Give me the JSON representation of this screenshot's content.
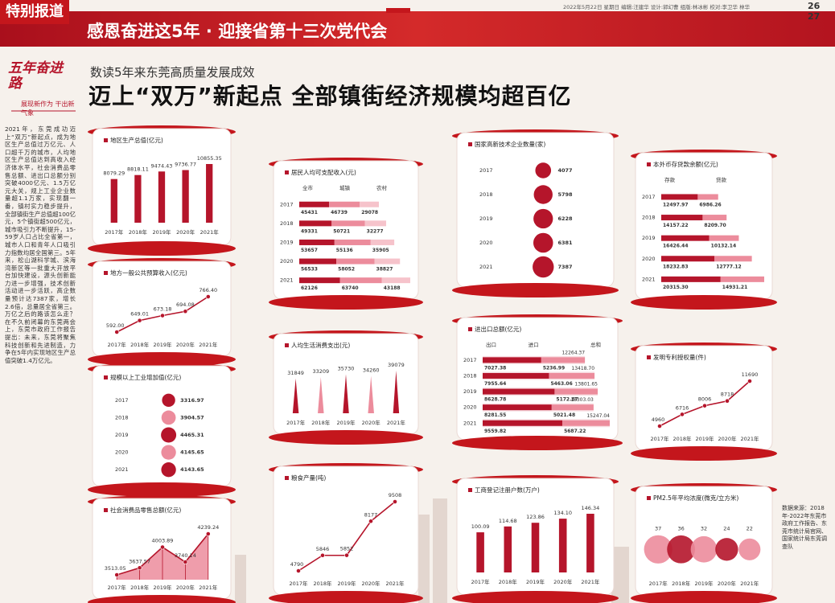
{
  "header": {
    "tag": "特别报道",
    "band_title": "感恩奋进这5年 · 迎接省第十三次党代会",
    "meta": "2022年5月22日 星期日 编辑:汪建华 设计:郭幻曹 组版:林冰彬 校对:李卫华 林华",
    "pages": "26 27"
  },
  "logo": {
    "title": "五年奋进路",
    "subtitle": "展现新作为 干出新气象"
  },
  "article": {
    "kicker": "数读5年来东莞高质量发展成效",
    "headline": "迈上“双万”新起点 全部镇街经济规模均超百亿",
    "body": "2021年，东莞成功迈上“双万”新起点，成为地区生产总值过万亿元、人口超千万的城市，人均地区生产总值达到高收入经济体水平，社会消费品零售总额、进出口总额分别突破4000亿元、1.5万亿元大关，规上工业企业数量超1.1万家，实现翻一番，镇村实力稳步提升，全部镇街生产总值超100亿元，5个镇街超500亿元，城市吸引力不断提升，15-59岁人口占比全省第一，城市人口和青年人口吸引力指数均居全国第三。5年来，松山湖科学城、滨海湾新区等一批重大开放平台加快建设，源头创新能力进一步增强，技术创新活动进一步活跃，高企数量预计达7387家，增长2.6倍，总量居全省第三。万亿之后的路该怎么走？在不久前闭幕的东莞两会上，东莞市政府工作报告提出：未来，东莞将聚焦科技创新和先进制造，力争在5年内实现地区生产总值突破1.4万亿元。",
    "source": "数据来源：2018年-2022年东莞市政府工作报告、东莞市统计局官网、国家统计局东莞调查队"
  },
  "chart_data": [
    {
      "type": "bar",
      "title": "地区生产总值(亿元)",
      "categories": [
        "2017年",
        "2018年",
        "2019年",
        "2020年",
        "2021年"
      ],
      "values": [
        8079.29,
        8818.11,
        9474.43,
        9736.77,
        10855.35
      ],
      "color": "#b5152b"
    },
    {
      "type": "line",
      "title": "地方一般公共预算收入(亿元)",
      "categories": [
        "2017年",
        "2018年",
        "2019年",
        "2020年",
        "2021年"
      ],
      "values": [
        592.0,
        649.01,
        673.18,
        694.08,
        766.4
      ],
      "value_labels": [
        "592.00",
        "649.01",
        "673.18",
        "694.08",
        "766.40"
      ],
      "color": "#b5152b"
    },
    {
      "type": "bubble",
      "title": "规模以上工业增加值(亿元)",
      "categories": [
        "2017",
        "2018",
        "2019",
        "2020",
        "2021"
      ],
      "values": [
        3316.97,
        3904.57,
        4465.31,
        4145.65,
        4143.65
      ],
      "colors": [
        "#b5152b",
        "#ec8c9c",
        "#b5152b",
        "#ec8c9c",
        "#b5152b"
      ]
    },
    {
      "type": "area",
      "title": "社会消费品零售总额(亿元)",
      "categories": [
        "2017年",
        "2018年",
        "2019年",
        "2020年",
        "2021年"
      ],
      "values": [
        3513.05,
        3637.57,
        4003.89,
        3740.14,
        4239.24
      ],
      "color": "#b5152b"
    },
    {
      "type": "hbar",
      "title": "居民人均可支配收入(元)",
      "categories": [
        "2017",
        "2018",
        "2019",
        "2020",
        "2021"
      ],
      "series": [
        {
          "name": "全市",
          "color": "#b5152b",
          "values": [
            45431,
            49331,
            53657,
            56533,
            62126
          ]
        },
        {
          "name": "城镇",
          "color": "#ec8c9c",
          "values": [
            46739,
            50721,
            55136,
            58052,
            63740
          ]
        },
        {
          "name": "农村",
          "color": "#f6c3cb",
          "values": [
            29078,
            32277,
            35905,
            38827,
            43188
          ]
        }
      ]
    },
    {
      "type": "spike",
      "title": "人均生活消费支出(元)",
      "categories": [
        "2017年",
        "2018年",
        "2019年",
        "2020年",
        "2021年"
      ],
      "values": [
        31849,
        33209,
        35730,
        34260,
        39079
      ],
      "colors": [
        "#b5152b",
        "#ec8c9c",
        "#b5152b",
        "#ec8c9c",
        "#b5152b"
      ]
    },
    {
      "type": "line",
      "title": "粮食产量(吨)",
      "categories": [
        "2017年",
        "2018年",
        "2019年",
        "2020年",
        "2021年"
      ],
      "values": [
        4790,
        5846,
        5852,
        8177,
        9508
      ],
      "color": "#b5152b"
    },
    {
      "type": "bubble",
      "title": "国家高新技术企业数量(家)",
      "categories": [
        "2017",
        "2018",
        "2019",
        "2020",
        "2021"
      ],
      "values": [
        4077,
        5798,
        6228,
        6381,
        7387
      ],
      "color": "#b5152b"
    },
    {
      "type": "hbar",
      "title": "进出口总额(亿元)",
      "categories": [
        "2017",
        "2018",
        "2019",
        "2020",
        "2021"
      ],
      "series": [
        {
          "name": "出口",
          "color": "#b5152b",
          "values": [
            7027.38,
            7955.64,
            8628.78,
            8281.55,
            9559.82
          ]
        },
        {
          "name": "进口",
          "color": "#ec8c9c",
          "values": [
            5236.99,
            5463.06,
            5172.87,
            5021.48,
            5687.22
          ]
        },
        {
          "name": "总和",
          "color": "#f3c1c9",
          "values": [
            12264.37,
            13418.7,
            13801.65,
            13303.03,
            15247.04
          ],
          "value_labels": [
            "12264.37",
            "13418.70",
            "13801.65",
            "13303.03",
            "15247.04"
          ]
        }
      ]
    },
    {
      "type": "bar",
      "title": "工商登记注册户数(万户)",
      "categories": [
        "2017年",
        "2018年",
        "2019年",
        "2020年",
        "2021年"
      ],
      "values": [
        100.09,
        114.68,
        123.86,
        134.1,
        146.34
      ],
      "value_labels": [
        "100.09",
        "114.68",
        "123.86",
        "134.10",
        "146.34"
      ],
      "color": "#b5152b"
    },
    {
      "type": "hbar",
      "title": "本外币存贷款余额(亿元)",
      "categories": [
        "2017",
        "2018",
        "2019",
        "2020",
        "2021"
      ],
      "series": [
        {
          "name": "存款",
          "color": "#b5152b",
          "values": [
            12497.97,
            14157.22,
            16426.44,
            18232.83,
            20315.3
          ],
          "value_labels": [
            "12497.97",
            "14157.22",
            "16426.44",
            "18232.83",
            "20315.30"
          ]
        },
        {
          "name": "贷款",
          "color": "#ec8c9c",
          "values": [
            6986.26,
            8209.7,
            10132.14,
            12777.12,
            14931.21
          ],
          "value_labels": [
            "6986.26",
            "8209.70",
            "10132.14",
            "12777.12",
            "14931.21"
          ]
        }
      ]
    },
    {
      "type": "line",
      "title": "发明专利授权量(件)",
      "categories": [
        "2017年",
        "2018年",
        "2019年",
        "2020年",
        "2021年"
      ],
      "values": [
        4960,
        6716,
        8006,
        8718,
        11690
      ],
      "color": "#b5152b"
    },
    {
      "type": "bubble",
      "title": "PM2.5年平均浓度(微克/立方米)",
      "categories": [
        "2017年",
        "2018年",
        "2019年",
        "2020年",
        "2021年"
      ],
      "values": [
        37,
        36,
        32,
        24,
        22
      ],
      "colors": [
        "#ec8c9c",
        "#b5152b",
        "#ec8c9c",
        "#b5152b",
        "#ec8c9c"
      ]
    }
  ]
}
